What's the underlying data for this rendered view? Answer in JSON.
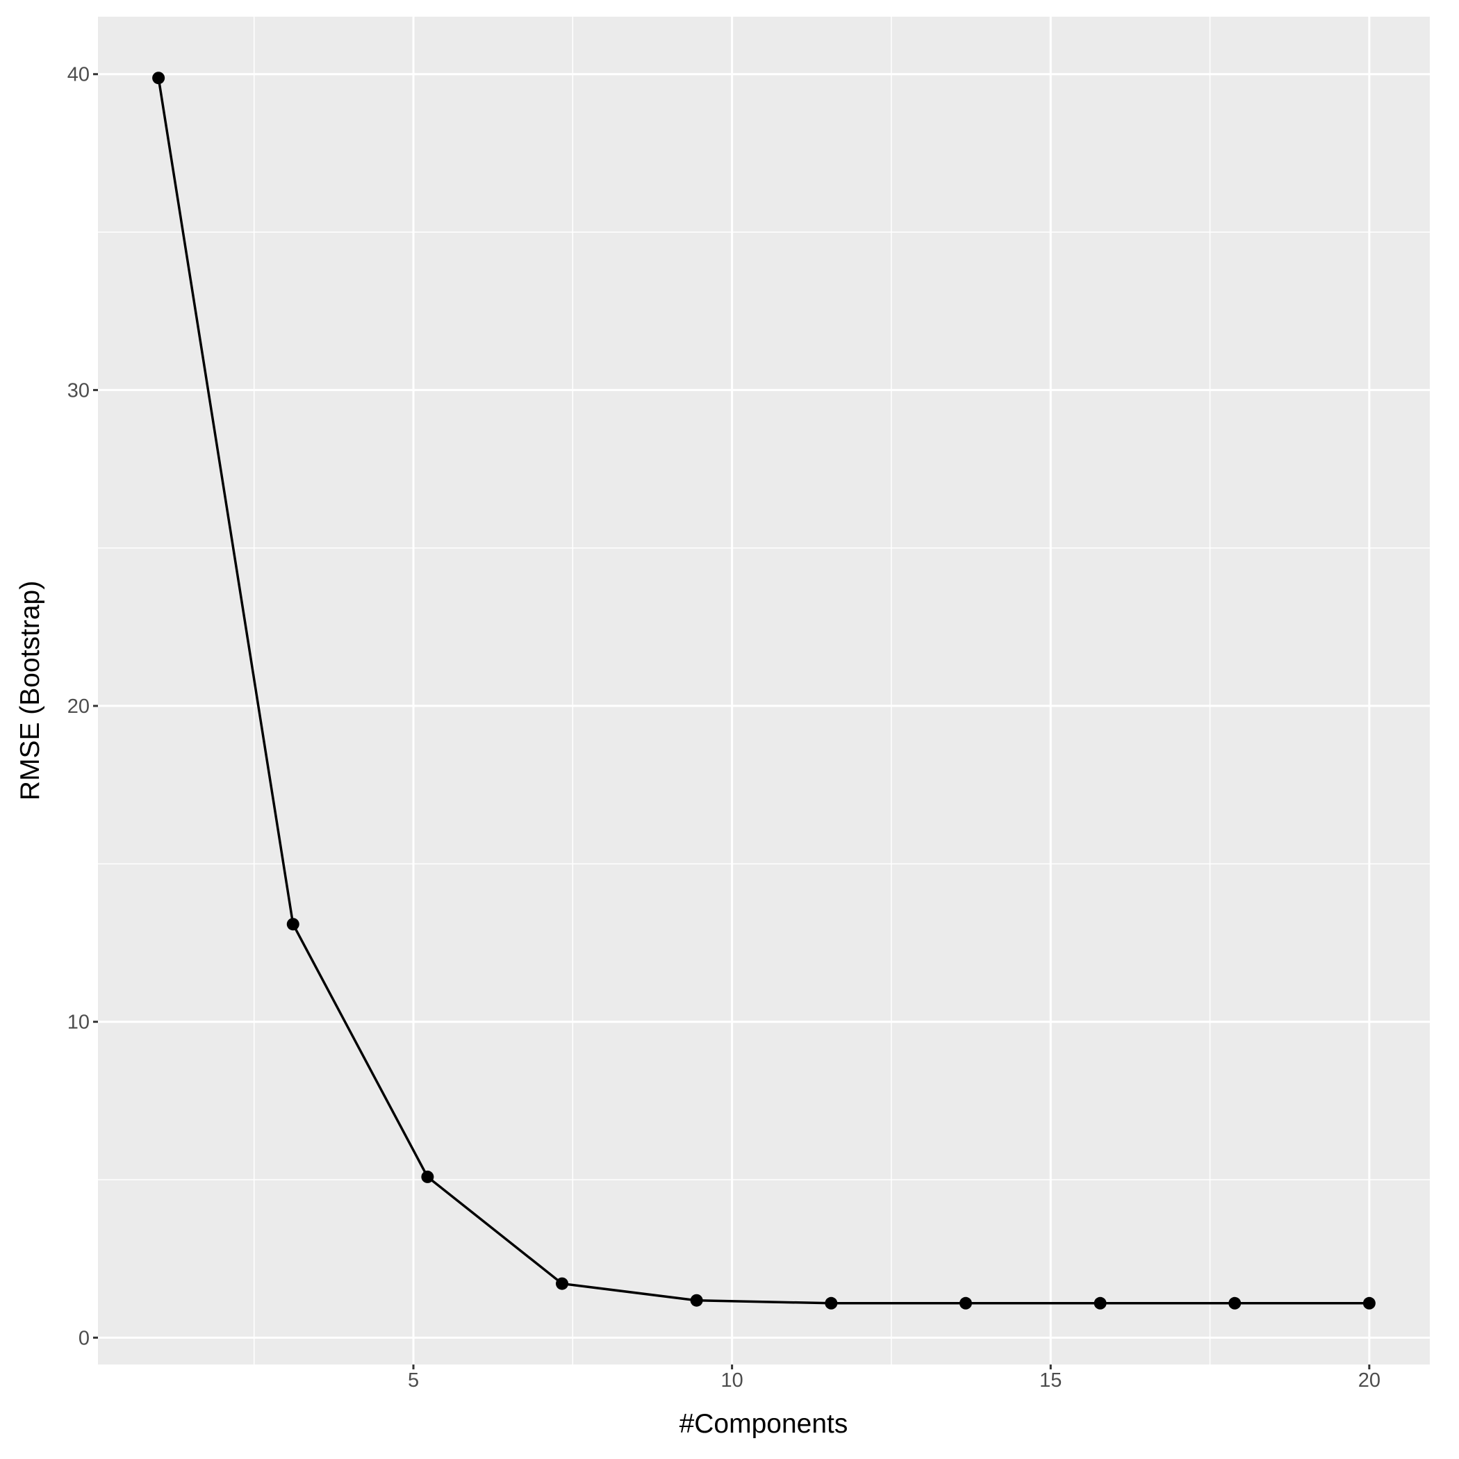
{
  "chart_data": {
    "type": "line",
    "x_label": "#Components",
    "y_label": "RMSE (Bootstrap)",
    "x": [
      1,
      3.111,
      5.222,
      7.333,
      9.444,
      11.556,
      13.667,
      15.778,
      17.889,
      20
    ],
    "series": [
      {
        "color": "#000000",
        "values": [
          39.88,
          13.09,
          5.09,
          1.71,
          1.18,
          1.09,
          1.09,
          1.09,
          1.09,
          1.09
        ]
      }
    ],
    "xlim": [
      0.05,
      20.95
    ],
    "xticks": [
      5,
      10,
      15,
      20
    ],
    "xminor": [
      2.5,
      7.5,
      12.5,
      17.5
    ],
    "ylim": [
      -0.85,
      41.82
    ],
    "yticks": [
      0,
      10,
      20,
      30,
      40
    ],
    "yminor": [
      5,
      15,
      25,
      35
    ],
    "grid": true,
    "markers": true
  }
}
